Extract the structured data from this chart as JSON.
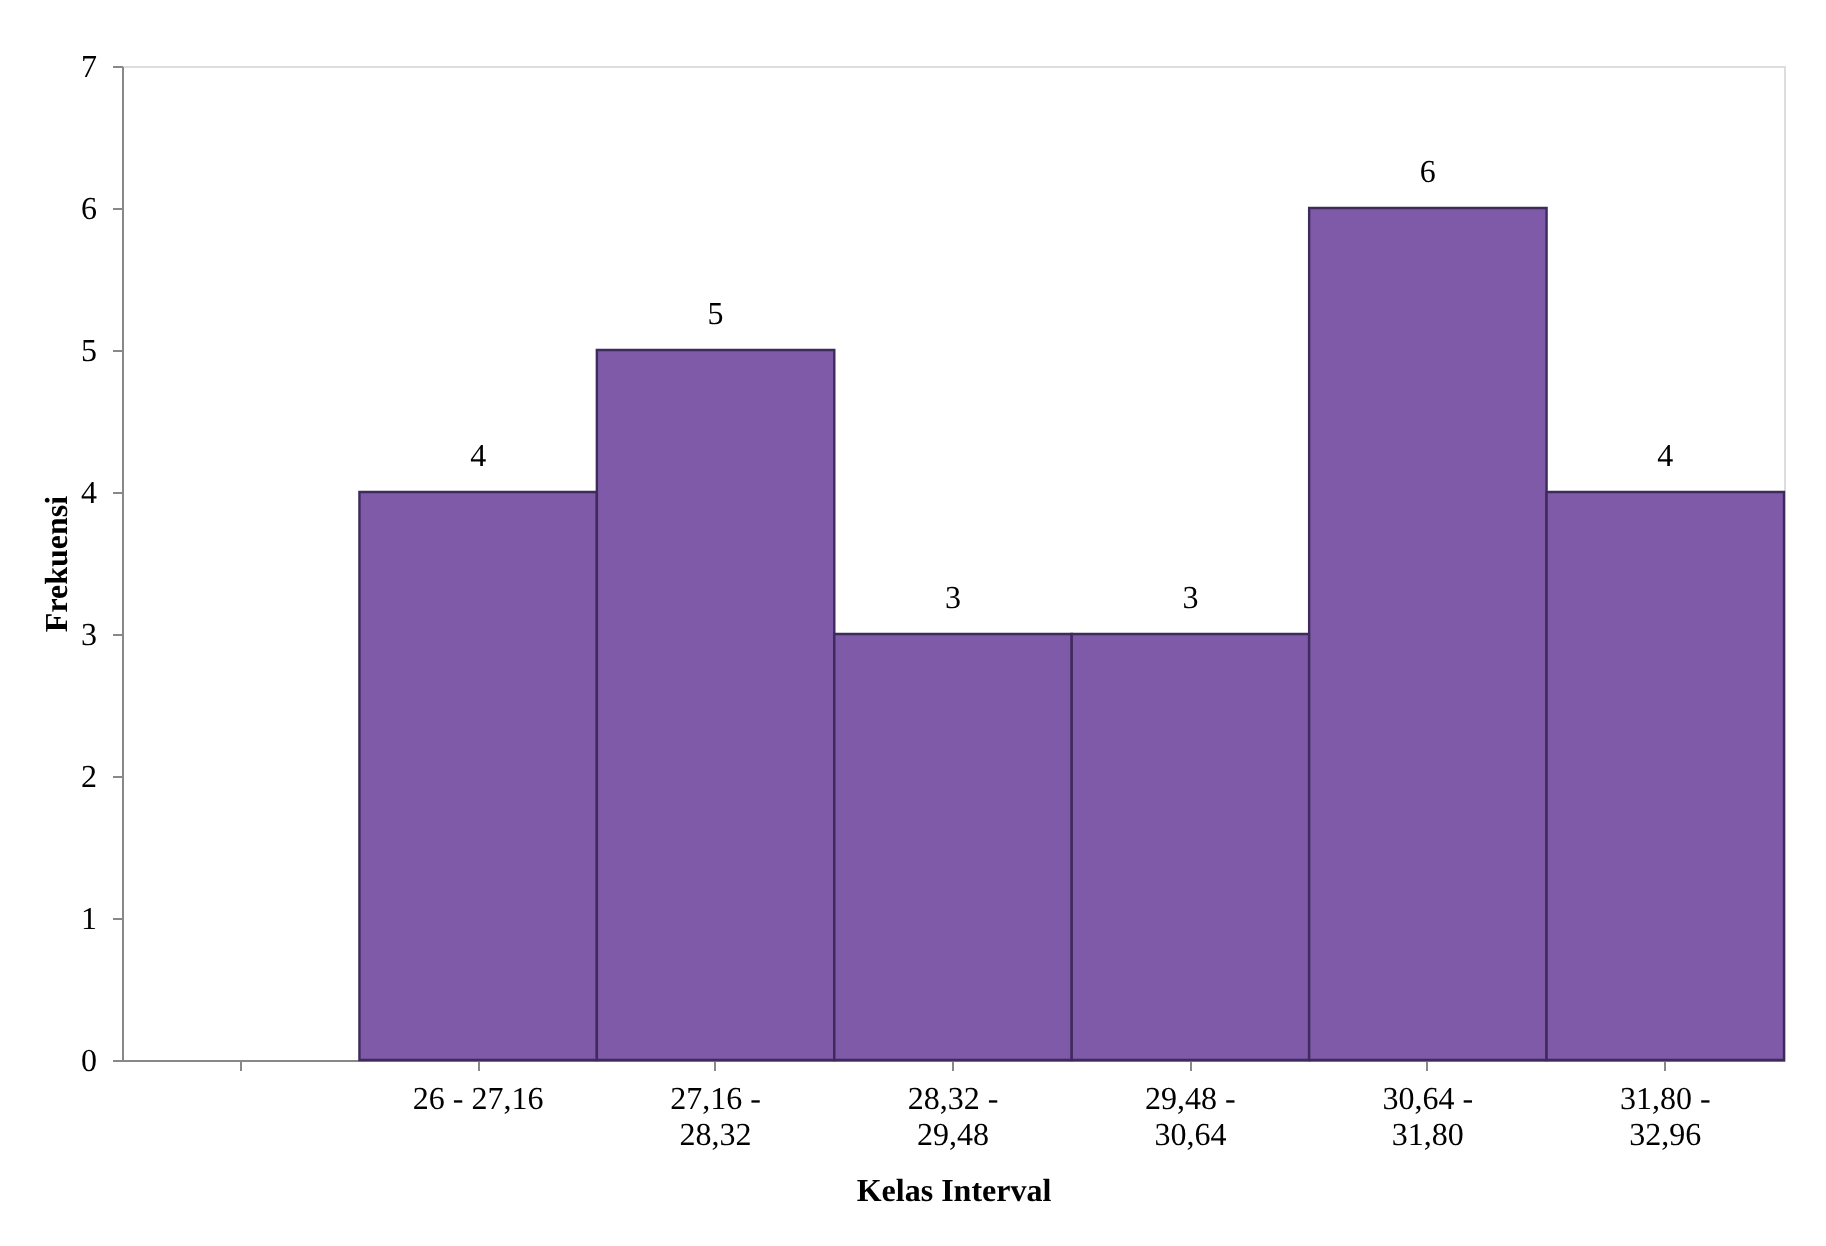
{
  "chart_data": {
    "type": "bar",
    "xlabel": "Kelas Interval",
    "ylabel": "Frekuensi",
    "categories": [
      null,
      "26 - 27,16",
      "27,16 -\n28,32",
      "28,32 -\n29,48",
      "29,48 -\n30,64",
      "30,64 -\n31,80",
      "31,80 -\n32,96"
    ],
    "values": [
      null,
      4,
      5,
      3,
      3,
      6,
      4
    ],
    "color": "#7f5aa8",
    "ylim": [
      0,
      7
    ],
    "yticks": [
      0,
      1,
      2,
      3,
      4,
      5,
      6,
      7
    ],
    "grid": false,
    "data_labels": true
  }
}
